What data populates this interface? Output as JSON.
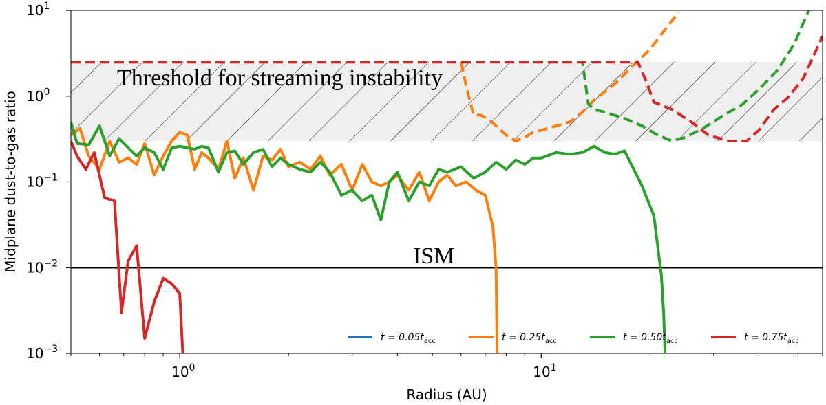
{
  "chart_data": {
    "type": "line",
    "xscale": "log",
    "yscale": "log",
    "xlabel": "Radius (AU)",
    "ylabel": "Midplane dust-to-gas ratio",
    "xlim": [
      0.5,
      60
    ],
    "ylim": [
      0.001,
      10
    ],
    "xticks": [
      {
        "value": 1,
        "base": "10",
        "exp": "0"
      },
      {
        "value": 10,
        "base": "10",
        "exp": "1"
      }
    ],
    "yticks": [
      {
        "value": 0.001,
        "base": "10",
        "exp": "−3"
      },
      {
        "value": 0.01,
        "base": "10",
        "exp": "−2"
      },
      {
        "value": 0.1,
        "base": "10",
        "exp": "−1"
      },
      {
        "value": 1,
        "base": "10",
        "exp": "0"
      },
      {
        "value": 10,
        "base": "10",
        "exp": "1"
      }
    ],
    "band": {
      "label": "Threshold for streaming instability",
      "ymin": 0.3,
      "ymax": 2.5
    },
    "hline": {
      "label": "ISM",
      "y": 0.01
    },
    "series": [
      {
        "name": "t = 0.05 t_acc",
        "legend_prefix": "t = 0.05",
        "legend_var": "t",
        "legend_sub": "acc",
        "color": "#1f77b4",
        "style": "solid",
        "x": [],
        "y": []
      },
      {
        "name": "t = 0.25 t_acc",
        "legend_prefix": "t = 0.25",
        "legend_var": "t",
        "legend_sub": "acc",
        "color": "#ff7f0e",
        "style": "solid",
        "x": [
          0.5,
          0.53,
          0.56,
          0.6,
          0.64,
          0.68,
          0.72,
          0.76,
          0.8,
          0.85,
          0.9,
          0.95,
          1.0,
          1.05,
          1.1,
          1.15,
          1.2,
          1.28,
          1.35,
          1.42,
          1.5,
          1.6,
          1.7,
          1.8,
          1.9,
          2.0,
          2.15,
          2.3,
          2.45,
          2.6,
          2.8,
          3.0,
          3.2,
          3.4,
          3.6,
          3.8,
          4.0,
          4.3,
          4.6,
          4.9,
          5.2,
          5.5,
          5.8,
          6.2,
          6.6,
          7.0,
          7.35,
          7.5,
          7.55
        ],
        "y": [
          0.35,
          0.42,
          0.2,
          0.14,
          0.3,
          0.17,
          0.19,
          0.16,
          0.28,
          0.12,
          0.2,
          0.3,
          0.38,
          0.35,
          0.14,
          0.22,
          0.19,
          0.14,
          0.3,
          0.11,
          0.19,
          0.08,
          0.2,
          0.18,
          0.24,
          0.15,
          0.17,
          0.14,
          0.2,
          0.12,
          0.16,
          0.08,
          0.16,
          0.1,
          0.09,
          0.1,
          0.12,
          0.08,
          0.13,
          0.06,
          0.1,
          0.12,
          0.09,
          0.1,
          0.08,
          0.07,
          0.03,
          0.01,
          0.001
        ]
      },
      {
        "name": "t = 0.25 t_acc (gas-loaded)",
        "color": "#ff7f0e",
        "style": "dashed",
        "legend": false,
        "x": [
          0.5,
          6.0,
          6.2,
          6.5,
          6.8,
          7.1,
          7.5,
          8.0,
          8.5,
          9.0,
          9.5,
          10.0,
          11.0,
          12.0,
          13.0,
          14.0,
          16.0,
          18.0,
          20.0,
          22.0,
          24.0
        ],
        "y": [
          2.5,
          2.5,
          1.3,
          0.6,
          0.6,
          0.55,
          0.45,
          0.35,
          0.3,
          0.33,
          0.38,
          0.4,
          0.45,
          0.5,
          0.65,
          0.9,
          1.4,
          2.3,
          3.5,
          6.0,
          9.5
        ]
      },
      {
        "name": "t = 0.50 t_acc",
        "legend_prefix": "t = 0.50",
        "legend_var": "t",
        "legend_sub": "acc",
        "color": "#2ca02c",
        "style": "solid",
        "x": [
          0.5,
          0.52,
          0.56,
          0.6,
          0.64,
          0.68,
          0.72,
          0.76,
          0.8,
          0.85,
          0.9,
          0.95,
          1.0,
          1.05,
          1.1,
          1.15,
          1.2,
          1.28,
          1.35,
          1.42,
          1.5,
          1.6,
          1.7,
          1.8,
          1.9,
          2.0,
          2.15,
          2.3,
          2.45,
          2.6,
          2.8,
          3.0,
          3.2,
          3.4,
          3.6,
          3.8,
          4.0,
          4.3,
          4.6,
          4.9,
          5.2,
          5.5,
          6.0,
          6.5,
          7.0,
          7.5,
          8.0,
          8.5,
          9.0,
          9.5,
          10.0,
          11.0,
          12.0,
          13.0,
          14.0,
          15.0,
          16.0,
          17.0,
          19.0,
          20.5,
          21.5,
          21.8,
          22.0
        ],
        "y": [
          0.5,
          0.28,
          0.27,
          0.45,
          0.2,
          0.32,
          0.25,
          0.2,
          0.25,
          0.22,
          0.14,
          0.25,
          0.26,
          0.25,
          0.24,
          0.26,
          0.25,
          0.13,
          0.22,
          0.23,
          0.16,
          0.22,
          0.24,
          0.15,
          0.19,
          0.16,
          0.14,
          0.13,
          0.17,
          0.13,
          0.07,
          0.08,
          0.06,
          0.07,
          0.036,
          0.1,
          0.13,
          0.06,
          0.1,
          0.09,
          0.14,
          0.13,
          0.15,
          0.11,
          0.13,
          0.17,
          0.14,
          0.18,
          0.16,
          0.19,
          0.19,
          0.22,
          0.21,
          0.22,
          0.26,
          0.22,
          0.21,
          0.23,
          0.09,
          0.04,
          0.008,
          0.003,
          0.001
        ]
      },
      {
        "name": "t = 0.50 t_acc (gas-loaded)",
        "color": "#2ca02c",
        "style": "dashed",
        "legend": false,
        "x": [
          0.5,
          13.0,
          13.5,
          14.0,
          15.0,
          17.0,
          19.0,
          21.0,
          23.0,
          25.0,
          28.0,
          32.0,
          36.0,
          40.0,
          45.0,
          50.0,
          55.0
        ],
        "y": [
          2.5,
          2.5,
          0.8,
          0.7,
          0.65,
          0.55,
          0.45,
          0.35,
          0.3,
          0.33,
          0.42,
          0.6,
          0.8,
          1.2,
          2.0,
          4.0,
          10.0
        ]
      },
      {
        "name": "t = 0.75 t_acc",
        "legend_prefix": "t = 0.75",
        "legend_var": "t",
        "legend_sub": "acc",
        "color": "#d62728",
        "style": "solid",
        "x": [
          0.5,
          0.52,
          0.55,
          0.58,
          0.62,
          0.66,
          0.69,
          0.72,
          0.76,
          0.8,
          0.85,
          0.9,
          0.95,
          1.0,
          1.02
        ],
        "y": [
          0.3,
          0.2,
          0.14,
          0.22,
          0.065,
          0.06,
          0.003,
          0.012,
          0.018,
          0.0015,
          0.004,
          0.0075,
          0.0065,
          0.005,
          0.001
        ]
      },
      {
        "name": "t = 0.75 t_acc (gas-loaded)",
        "color": "#d62728",
        "style": "dashed",
        "legend": false,
        "x": [
          0.5,
          18.5,
          19.5,
          20.5,
          23.0,
          26.0,
          29.0,
          33.0,
          37.0,
          40.0,
          44.0,
          48.0,
          53.0,
          60.0
        ],
        "y": [
          2.5,
          2.5,
          1.5,
          0.85,
          0.7,
          0.5,
          0.35,
          0.3,
          0.3,
          0.4,
          0.7,
          0.95,
          1.6,
          5.0
        ]
      }
    ]
  }
}
